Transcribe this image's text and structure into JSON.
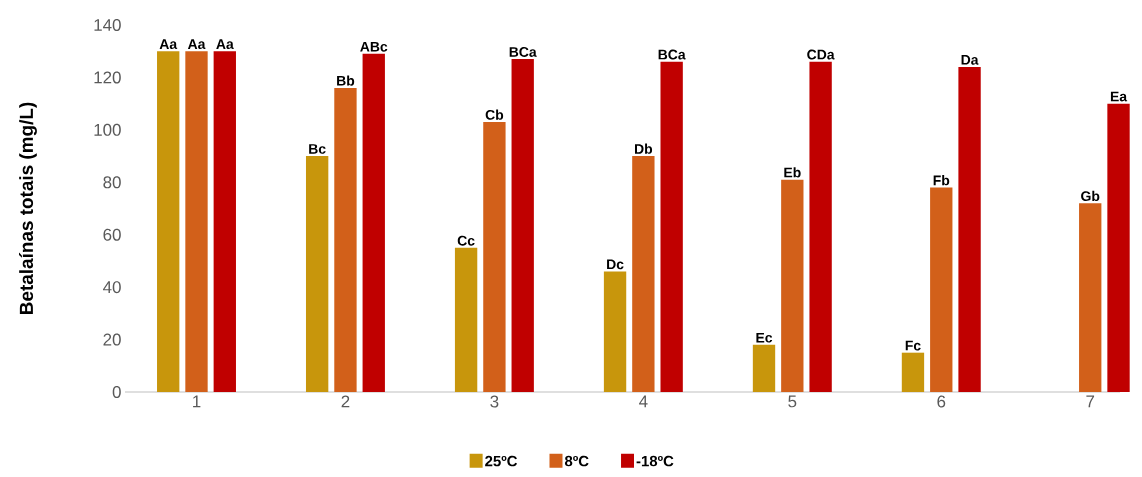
{
  "chart_data": {
    "type": "bar",
    "ylabel": "Betalaínas totais (mg/L)",
    "categories": [
      "1",
      "2",
      "3",
      "4",
      "5",
      "6",
      "7"
    ],
    "series": [
      {
        "name": "25ºC",
        "color": "#c8960c",
        "values": [
          130,
          90,
          55,
          46,
          18,
          15,
          null
        ],
        "value_labels": [
          "Aa",
          "Bc",
          "Cc",
          "Dc",
          "Ec",
          "Fc",
          null
        ]
      },
      {
        "name": "8ºC",
        "color": "#d2601a",
        "values": [
          130,
          116,
          103,
          90,
          81,
          78,
          72
        ],
        "value_labels": [
          "Aa",
          "Bb",
          "Cb",
          "Db",
          "Eb",
          "Fb",
          "Gb"
        ]
      },
      {
        "name": "-18ºC",
        "color": "#c00000",
        "values": [
          130,
          129,
          127,
          126,
          126,
          124,
          110
        ],
        "value_labels": [
          "Aa",
          "ABc",
          "BCa",
          "BCa",
          "CDa",
          "Da",
          "Ea"
        ]
      }
    ],
    "ylim": [
      0,
      140
    ],
    "yticks": [
      0,
      20,
      40,
      60,
      80,
      100,
      120,
      140
    ],
    "legend": "bottom",
    "grid": false
  }
}
